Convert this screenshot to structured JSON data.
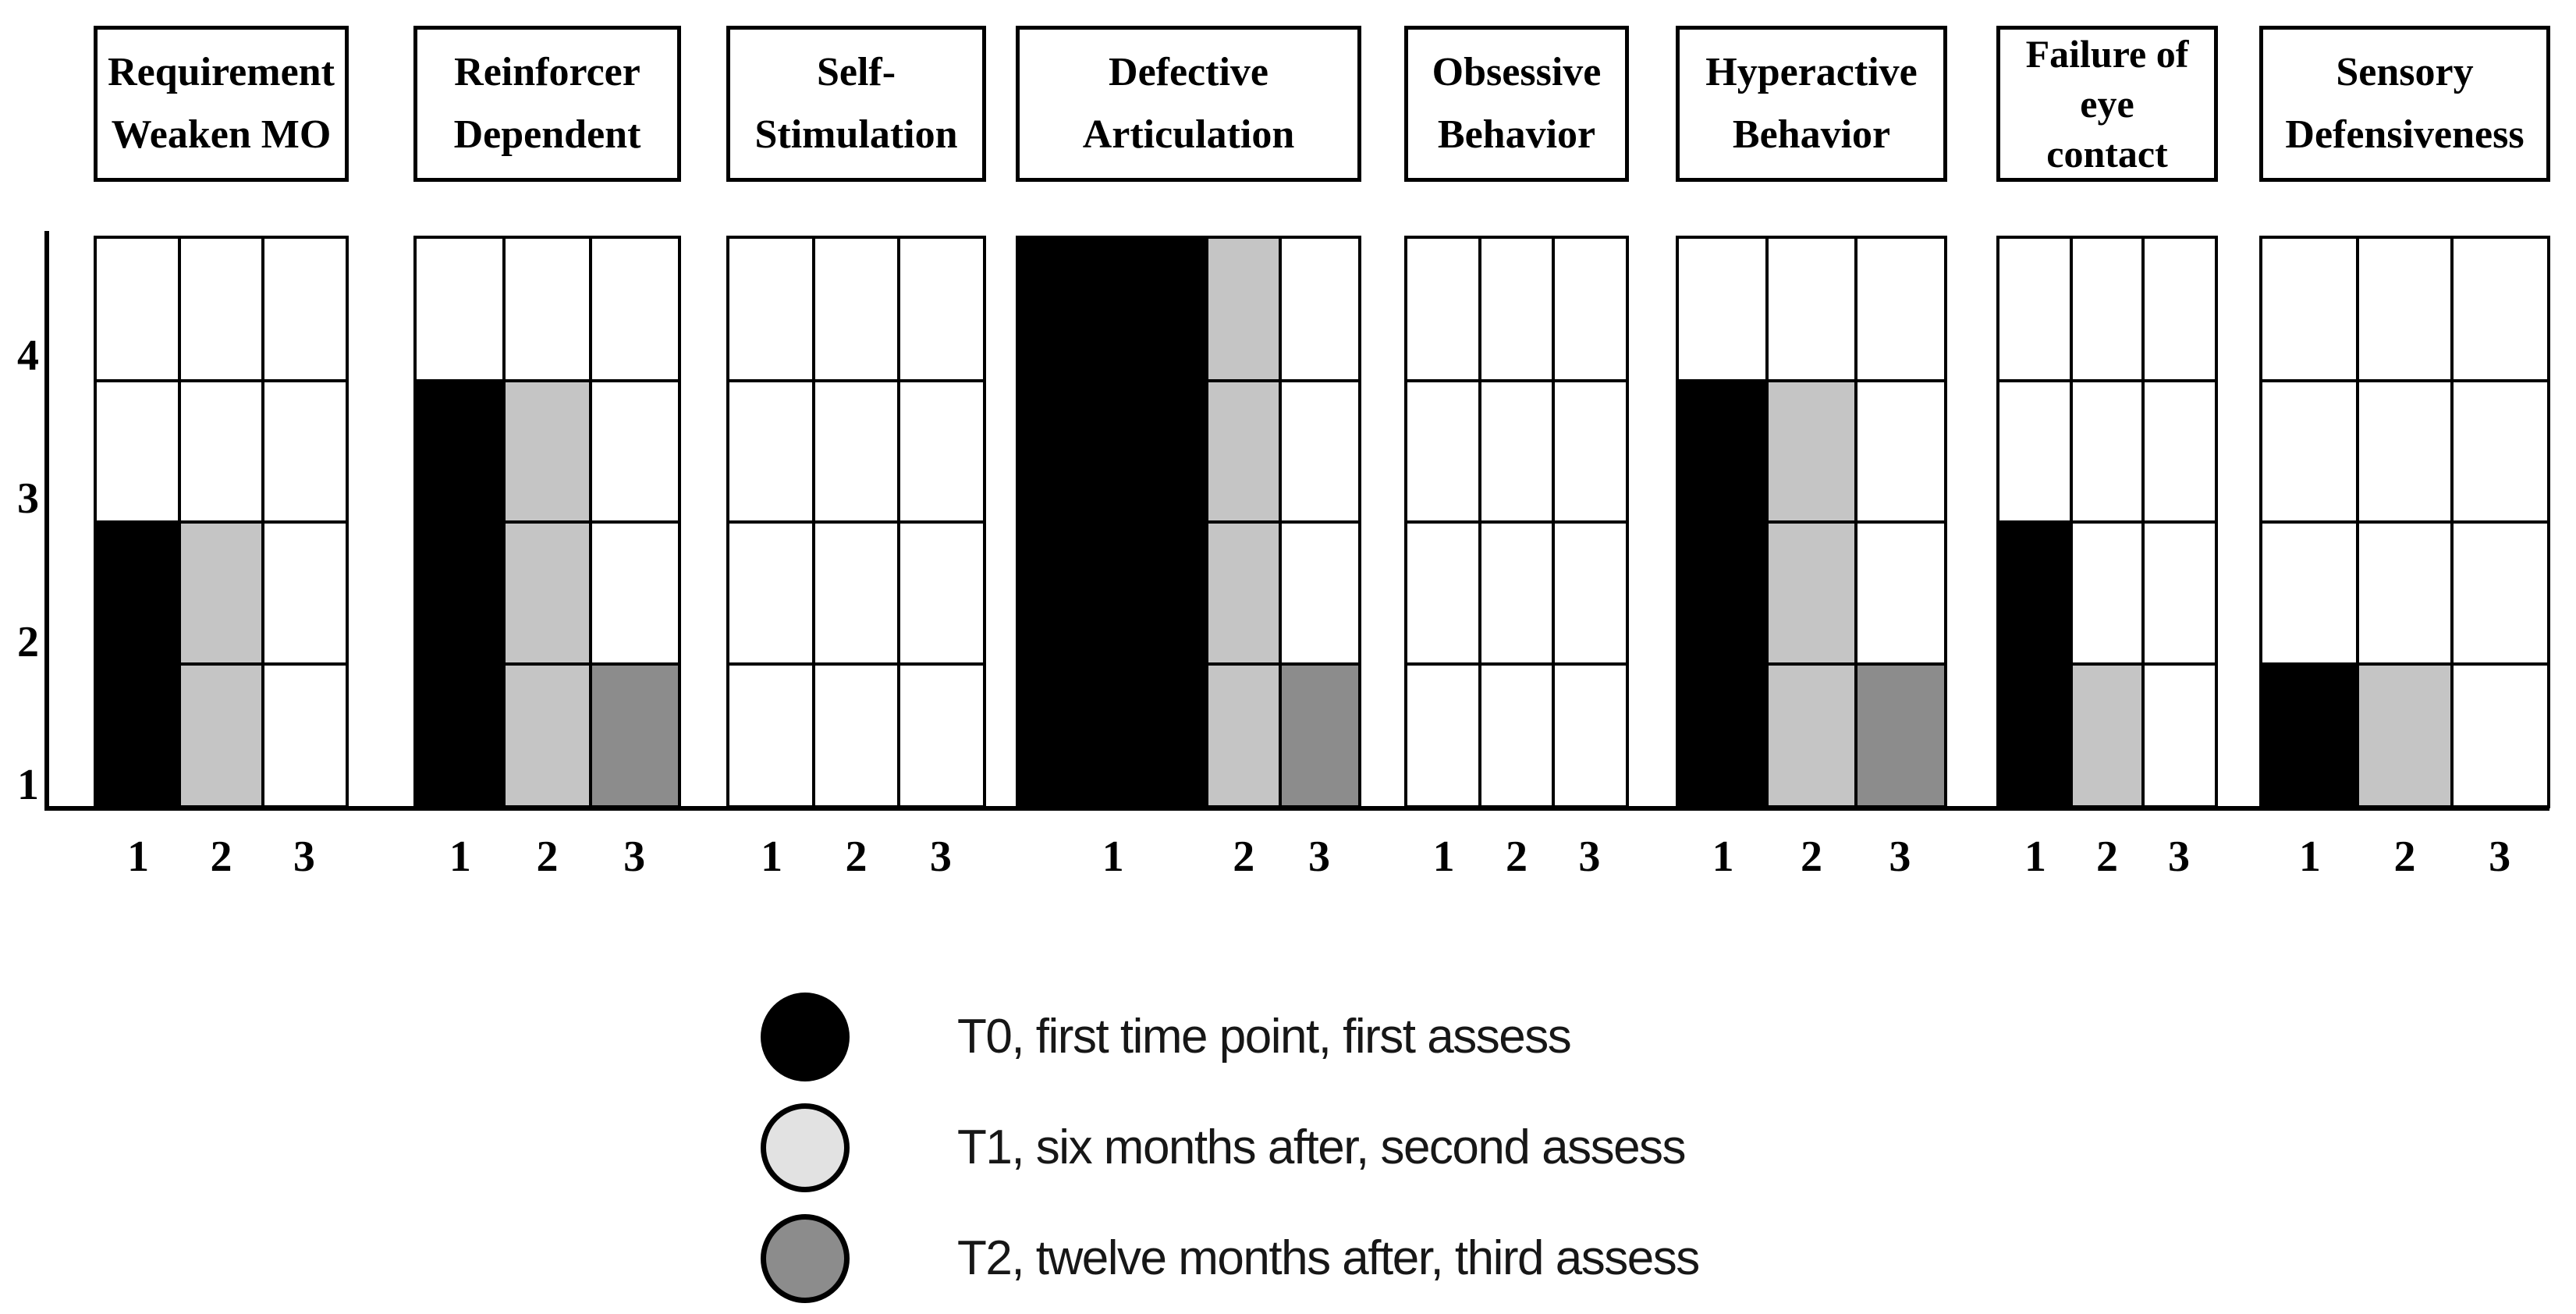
{
  "figure": {
    "background": "#ffffff"
  },
  "chart_data": {
    "type": "bar",
    "title": "",
    "xlabel": "",
    "ylabel": "",
    "y_axis": {
      "ticks": [
        "1",
        "2",
        "3",
        "4"
      ],
      "min": 1,
      "max": 5,
      "grid": true
    },
    "x_tick_labels": [
      "1",
      "2",
      "3"
    ],
    "baseline_value": 1,
    "legend_position": "bottom",
    "series": [
      {
        "id": "T0",
        "label": "T0, first time point, first assess",
        "bar_color": "#000000",
        "legend_color": "#000000"
      },
      {
        "id": "T1",
        "label": "T1, six months after, second assess",
        "bar_color": "#c5c5c5",
        "legend_color": "#e2e2e2"
      },
      {
        "id": "T2",
        "label": "T2, twelve months after, third assess",
        "bar_color": "#8c8c8c",
        "legend_color": "#8c8c8c"
      }
    ],
    "panels": [
      {
        "title": "Requirement Weaken MO",
        "title_lines": [
          "Requirement",
          "Weaken MO"
        ],
        "values": [
          3,
          3,
          1
        ]
      },
      {
        "title": "Reinforcer Dependent",
        "title_lines": [
          "Reinforcer",
          "Dependent"
        ],
        "values": [
          4,
          4,
          2
        ]
      },
      {
        "title": "Self-Stimulation",
        "title_lines": [
          "Self-",
          "Stimulation"
        ],
        "values": [
          1,
          1,
          1
        ]
      },
      {
        "title": "Defective Articulation",
        "title_lines": [
          "Defective",
          "Articulation"
        ],
        "values": [
          5,
          5,
          2
        ],
        "first_bar_double_width": true
      },
      {
        "title": "Obsessive Behavior",
        "title_lines": [
          "Obsessive",
          "Behavior"
        ],
        "values": [
          1,
          1,
          1
        ]
      },
      {
        "title": "Hyperactive Behavior",
        "title_lines": [
          "Hyperactive",
          "Behavior"
        ],
        "values": [
          4,
          4,
          2
        ]
      },
      {
        "title": "Failure of eye contact",
        "title_lines": [
          "Failure of",
          "eye",
          "contact"
        ],
        "values": [
          3,
          2,
          1
        ]
      },
      {
        "title": "Sensory Defensiveness",
        "title_lines": [
          "Sensory",
          "Defensiveness"
        ],
        "values": [
          2,
          2,
          1
        ]
      }
    ]
  }
}
